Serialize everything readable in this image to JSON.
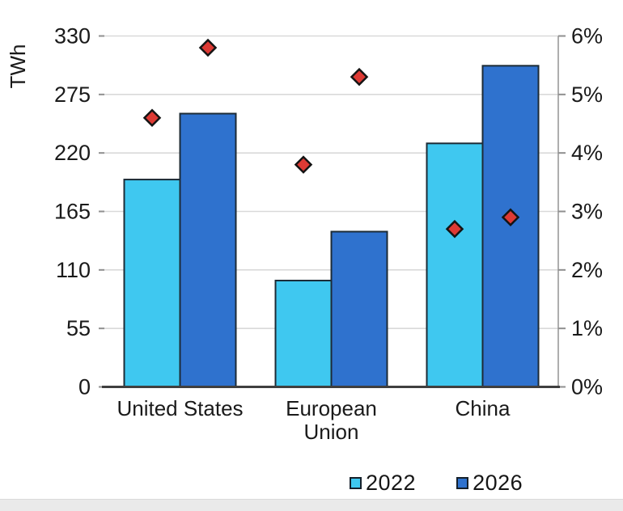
{
  "chart_data": {
    "type": "bar",
    "title": "",
    "categories": [
      "United States",
      "European Union",
      "China"
    ],
    "categories_wrapped": [
      [
        "United States"
      ],
      [
        "European",
        "Union"
      ],
      [
        "China"
      ]
    ],
    "series": [
      {
        "name": "2022",
        "color": "#3fc8f0",
        "values_twh": [
          195,
          100,
          229
        ]
      },
      {
        "name": "2026",
        "color": "#2f72ce",
        "values_twh": [
          257,
          146,
          302
        ]
      }
    ],
    "markers": {
      "shape": "diamond",
      "color": "#dd3a34",
      "series": [
        {
          "name": "2022",
          "share_percent": [
            4.6,
            3.8,
            2.7
          ]
        },
        {
          "name": "2026",
          "share_percent": [
            5.8,
            5.3,
            2.9
          ]
        }
      ]
    },
    "left_axis": {
      "label": "TWh",
      "ticks": [
        0,
        55,
        110,
        165,
        220,
        275,
        330
      ],
      "range": [
        0,
        330
      ]
    },
    "right_axis": {
      "tick_labels": [
        "0%",
        "1%",
        "2%",
        "3%",
        "4%",
        "5%",
        "6%"
      ],
      "tick_values": [
        0,
        1,
        2,
        3,
        4,
        5,
        6
      ],
      "range": [
        0,
        6
      ]
    },
    "legend": {
      "position": "bottom-right",
      "items": [
        "2022",
        "2026"
      ]
    },
    "grid": true,
    "colors": {
      "grid": "#d9d9d9",
      "bottom_axis": "#3f3f3f",
      "right_axis": "#9a9a9a",
      "tick_stub": "#8f8f8f",
      "bar_outline": "#1c2b36",
      "marker_outline": "#141414",
      "text": "#1a1a1a"
    }
  }
}
